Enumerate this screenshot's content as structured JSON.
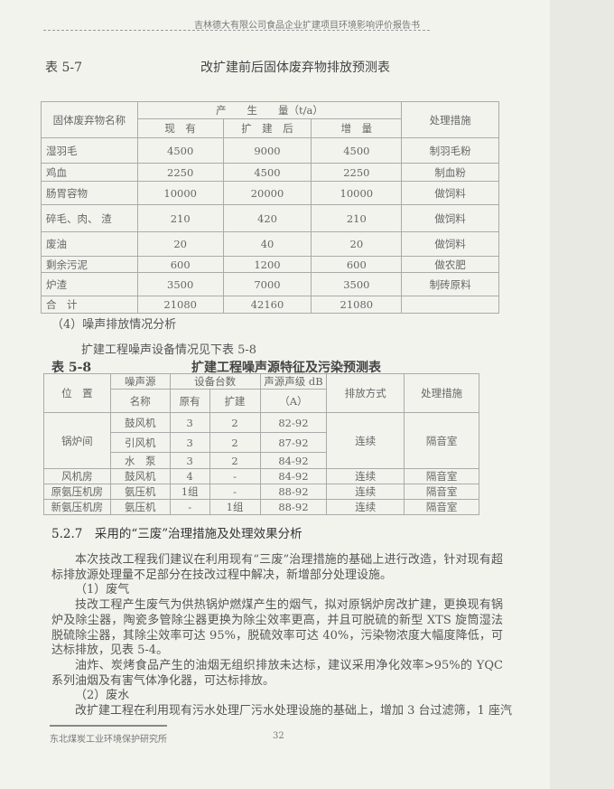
{
  "header": "吉林德大有限公司食品企业扩建项目环境影响评价报告书",
  "table1": {
    "label": "表 5-7",
    "title": "改扩建前后固体废弃物排放预测表",
    "headers": {
      "name": "固体废弃物名称",
      "amount": "产　　生　　量（t/a）",
      "current": "现　有",
      "after": "扩　建　后",
      "increase": "增　量",
      "measure": "处理措施"
    },
    "rows": [
      [
        "湿羽毛",
        "4500",
        "9000",
        "4500",
        "制羽毛粉"
      ],
      [
        "鸡血",
        "2250",
        "4500",
        "2250",
        "制血粉"
      ],
      [
        "肠胃容物",
        "10000",
        "20000",
        "10000",
        "做饲料"
      ],
      [
        "碎毛、肉、 渣",
        "210",
        "420",
        "210",
        "做饲料"
      ],
      [
        "废油",
        "20",
        "40",
        "20",
        "做饲料"
      ],
      [
        "剩余污泥",
        "600",
        "1200",
        "600",
        "做农肥"
      ],
      [
        "炉渣",
        "3500",
        "7000",
        "3500",
        "制砖原料"
      ],
      [
        "合　计",
        "21080",
        "42160",
        "21080",
        ""
      ]
    ]
  },
  "noise_heading": "（4）噪声排放情况分析",
  "noise_intro": "扩建工程噪声设备情况见下表 5-8",
  "table2": {
    "label": "表 5-8",
    "title": "扩建工程噪声源特征及污染预测表",
    "headers": {
      "location": "位　置",
      "source1": "噪声源",
      "source2": "名称",
      "count": "设备台数",
      "orig": "原有",
      "exp": "扩建",
      "level1": "声源声级 dB",
      "level2": "（A）",
      "mode": "排放方式",
      "measure": "处理措施"
    },
    "boiler": {
      "location": "锅炉间",
      "mode": "连续",
      "measure": "隔音室",
      "rows": [
        [
          "鼓风机",
          "3",
          "2",
          "82-92"
        ],
        [
          "引风机",
          "3",
          "2",
          "87-92"
        ],
        [
          "水　泵",
          "3",
          "2",
          "84-92"
        ]
      ]
    },
    "rows": [
      [
        "风机房",
        "鼓风机",
        "4",
        "-",
        "84-92",
        "连续",
        "隔音室"
      ],
      [
        "原氨压机房",
        "氨压机",
        "1组",
        "-",
        "88-92",
        "连续",
        "隔音室"
      ],
      [
        "新氨压机房",
        "氨压机",
        "-",
        "1组",
        "88-92",
        "连续",
        "隔音室"
      ]
    ]
  },
  "section": {
    "number": "5.2.7",
    "title": "采用的“三废”治理措施及处理效果分析"
  },
  "paragraphs": {
    "p1": "本次技改工程我们建议在利用现有“三废”治理措施的基础上进行改造，针对现有超标排放源处理量不足部分在技改过程中解决，新增部分处理设施。",
    "h1": "（1）废气",
    "p2": "技改工程产生废气为供热锅炉燃煤产生的烟气，拟对原锅炉房改扩建，更换现有锅炉及除尘器，陶瓷多管除尘器更换为除尘效率更高，并且可脱硫的新型 XTS 旋筒湿法脱硫除尘器，其除尘效率可达 95%，脱硫效率可达 40%，污染物浓度大幅度降低，可达标排放，见表 5-4。",
    "p3": "油炸、炭烤食品产生的油烟无组织排放未达标，建议采用净化效率>95%的 YQC 系列油烟及有害气体净化器，可达标排放。",
    "h2": "（2）废水",
    "p4": "改扩建工程在利用现有污水处理厂污水处理设施的基础上，增加 3 台过滤筛，1 座汽"
  },
  "footer": {
    "org": "东北煤炭工业环境保护研究所",
    "page": "32"
  }
}
